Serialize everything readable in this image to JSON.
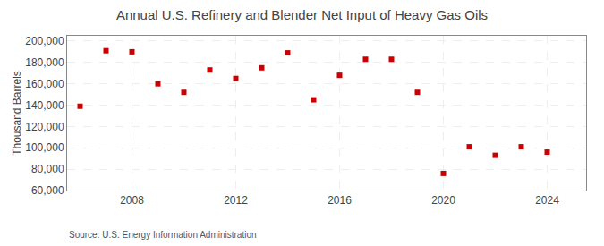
{
  "chart_data": {
    "type": "scatter",
    "title": "Annual U.S. Refinery and Blender Net Input of Heavy Gas Oils",
    "ylabel": "Thousand Barrels",
    "annotations": [
      "Source: U.S. Energy Information Administration"
    ],
    "x": [
      2006,
      2007,
      2008,
      2009,
      2010,
      2011,
      2012,
      2013,
      2014,
      2015,
      2016,
      2017,
      2018,
      2019,
      2020,
      2021,
      2022,
      2023,
      2024
    ],
    "values": [
      139000,
      191000,
      190000,
      160000,
      152000,
      173000,
      165000,
      175000,
      189000,
      145000,
      168000,
      183000,
      183000,
      152000,
      76000,
      101000,
      93000,
      101000,
      96000
    ],
    "color": "#cc0000",
    "marker": "square",
    "xlim": [
      2005.5,
      2025.5
    ],
    "xticks": [
      2008,
      2012,
      2016,
      2020,
      2024
    ],
    "ylim": [
      60000,
      205000
    ],
    "yticks": [
      {
        "value": 60000,
        "label": "60,000"
      },
      {
        "value": 80000,
        "label": "80,000"
      },
      {
        "value": 100000,
        "label": "100,000"
      },
      {
        "value": 120000,
        "label": "120,000"
      },
      {
        "value": 140000,
        "label": "140,000"
      },
      {
        "value": 160000,
        "label": "160,000"
      },
      {
        "value": 180000,
        "label": "180,000"
      },
      {
        "value": 200000,
        "label": "200,000"
      }
    ],
    "grid": true
  }
}
